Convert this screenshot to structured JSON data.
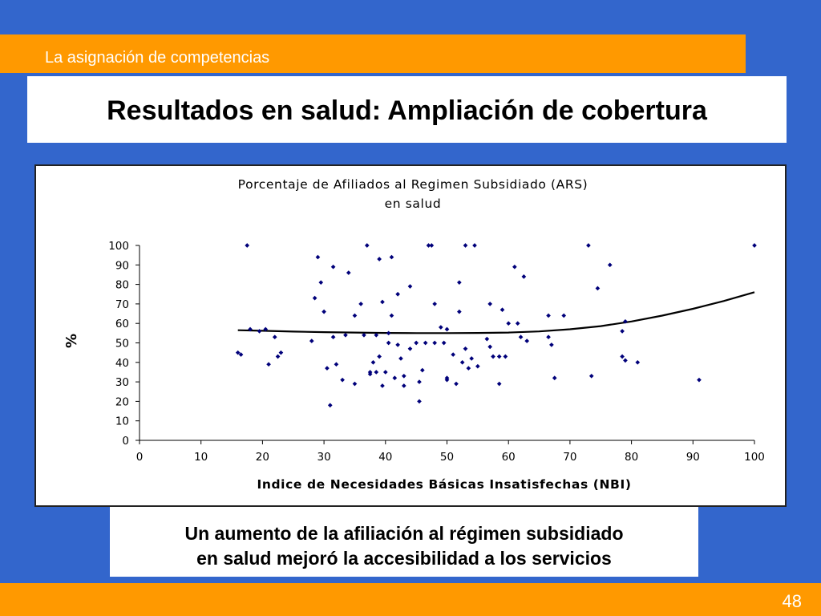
{
  "header": {
    "section": "La asignación de competencias"
  },
  "slide": {
    "title": "Resultados en salud: Ampliación de cobertura",
    "caption_line1": "Un aumento de la afiliación al régimen subsidiado",
    "caption_line2": "en salud mejoró la accesibilidad a los servicios",
    "page_number": "48"
  },
  "colors": {
    "background": "#3366cc",
    "accent": "#ff9900",
    "points": "#00007a",
    "trend": "#000000"
  },
  "chart_data": {
    "type": "scatter",
    "title_line1": "Porcentaje de Afiliados al Regimen Subsidiado (ARS)",
    "title_line2": "en salud",
    "xlabel": "Indice de Necesidades Básicas Insatisfechas (NBI)",
    "ylabel": "%",
    "xlim": [
      0,
      100
    ],
    "ylim": [
      0,
      100
    ],
    "x_ticks": [
      0,
      10,
      20,
      30,
      40,
      50,
      60,
      70,
      80,
      90,
      100
    ],
    "y_ticks": [
      0,
      10,
      20,
      30,
      40,
      50,
      60,
      70,
      80,
      90,
      100
    ],
    "legend": "none",
    "grid": false,
    "series": [
      {
        "points": [
          [
            16,
            45
          ],
          [
            16.5,
            44
          ],
          [
            17.5,
            100
          ],
          [
            18,
            57
          ],
          [
            19.5,
            56
          ],
          [
            20.5,
            57
          ],
          [
            21,
            39
          ],
          [
            22,
            53
          ],
          [
            22.5,
            43
          ],
          [
            23,
            45
          ],
          [
            28,
            51
          ],
          [
            28.5,
            73
          ],
          [
            29,
            94
          ],
          [
            29.5,
            81
          ],
          [
            30,
            66
          ],
          [
            30.5,
            37
          ],
          [
            31,
            18
          ],
          [
            31.5,
            53
          ],
          [
            31.5,
            89
          ],
          [
            32,
            39
          ],
          [
            33,
            31
          ],
          [
            33.5,
            54
          ],
          [
            34,
            86
          ],
          [
            35,
            64
          ],
          [
            35,
            29
          ],
          [
            36,
            70
          ],
          [
            36.5,
            54
          ],
          [
            37,
            100
          ],
          [
            37.5,
            34
          ],
          [
            37.5,
            35
          ],
          [
            38,
            40
          ],
          [
            38.5,
            54
          ],
          [
            38.5,
            35
          ],
          [
            39,
            93
          ],
          [
            39,
            43
          ],
          [
            39.5,
            28
          ],
          [
            39.5,
            71
          ],
          [
            40,
            35
          ],
          [
            40.5,
            50
          ],
          [
            40.5,
            55
          ],
          [
            41,
            94
          ],
          [
            41,
            64
          ],
          [
            41.5,
            32
          ],
          [
            42,
            49
          ],
          [
            42,
            75
          ],
          [
            42.5,
            42
          ],
          [
            43,
            33
          ],
          [
            43,
            28
          ],
          [
            44,
            79
          ],
          [
            44,
            47
          ],
          [
            45,
            50
          ],
          [
            45.5,
            20
          ],
          [
            45.5,
            30
          ],
          [
            46,
            36
          ],
          [
            46.5,
            50
          ],
          [
            47,
            100
          ],
          [
            47.5,
            100
          ],
          [
            48,
            70
          ],
          [
            48,
            50
          ],
          [
            49,
            58
          ],
          [
            49.5,
            50
          ],
          [
            50,
            32
          ],
          [
            50,
            31
          ],
          [
            50,
            57
          ],
          [
            51,
            44
          ],
          [
            51.5,
            29
          ],
          [
            52,
            81
          ],
          [
            52,
            66
          ],
          [
            52.5,
            40
          ],
          [
            53,
            47
          ],
          [
            53,
            100
          ],
          [
            53.5,
            37
          ],
          [
            54,
            42
          ],
          [
            54.5,
            100
          ],
          [
            55,
            38
          ],
          [
            56.5,
            52
          ],
          [
            57,
            70
          ],
          [
            57,
            48
          ],
          [
            57.5,
            43
          ],
          [
            58.5,
            29
          ],
          [
            58.5,
            43
          ],
          [
            59,
            67
          ],
          [
            59.5,
            43
          ],
          [
            60,
            60
          ],
          [
            61,
            89
          ],
          [
            61.5,
            60
          ],
          [
            62,
            53
          ],
          [
            62.5,
            84
          ],
          [
            63,
            51
          ],
          [
            66.5,
            53
          ],
          [
            66.5,
            64
          ],
          [
            67,
            49
          ],
          [
            67.5,
            32
          ],
          [
            69,
            64
          ],
          [
            73,
            100
          ],
          [
            73.5,
            33
          ],
          [
            74.5,
            78
          ],
          [
            76.5,
            90
          ],
          [
            78.5,
            43
          ],
          [
            78.5,
            56
          ],
          [
            79,
            41
          ],
          [
            79,
            61
          ],
          [
            81,
            40
          ],
          [
            91,
            31
          ],
          [
            100,
            100
          ]
        ]
      },
      {
        "type": "line",
        "points": [
          [
            16,
            56.5
          ],
          [
            20,
            56.2
          ],
          [
            25,
            55.8
          ],
          [
            30,
            55.5
          ],
          [
            35,
            55.3
          ],
          [
            40,
            55.1
          ],
          [
            45,
            55.0
          ],
          [
            50,
            55.0
          ],
          [
            55,
            55.1
          ],
          [
            60,
            55.3
          ],
          [
            65,
            55.9
          ],
          [
            70,
            57.0
          ],
          [
            75,
            58.6
          ],
          [
            80,
            61.0
          ],
          [
            85,
            64.0
          ],
          [
            90,
            67.5
          ],
          [
            95,
            71.5
          ],
          [
            100,
            76
          ]
        ]
      }
    ]
  }
}
